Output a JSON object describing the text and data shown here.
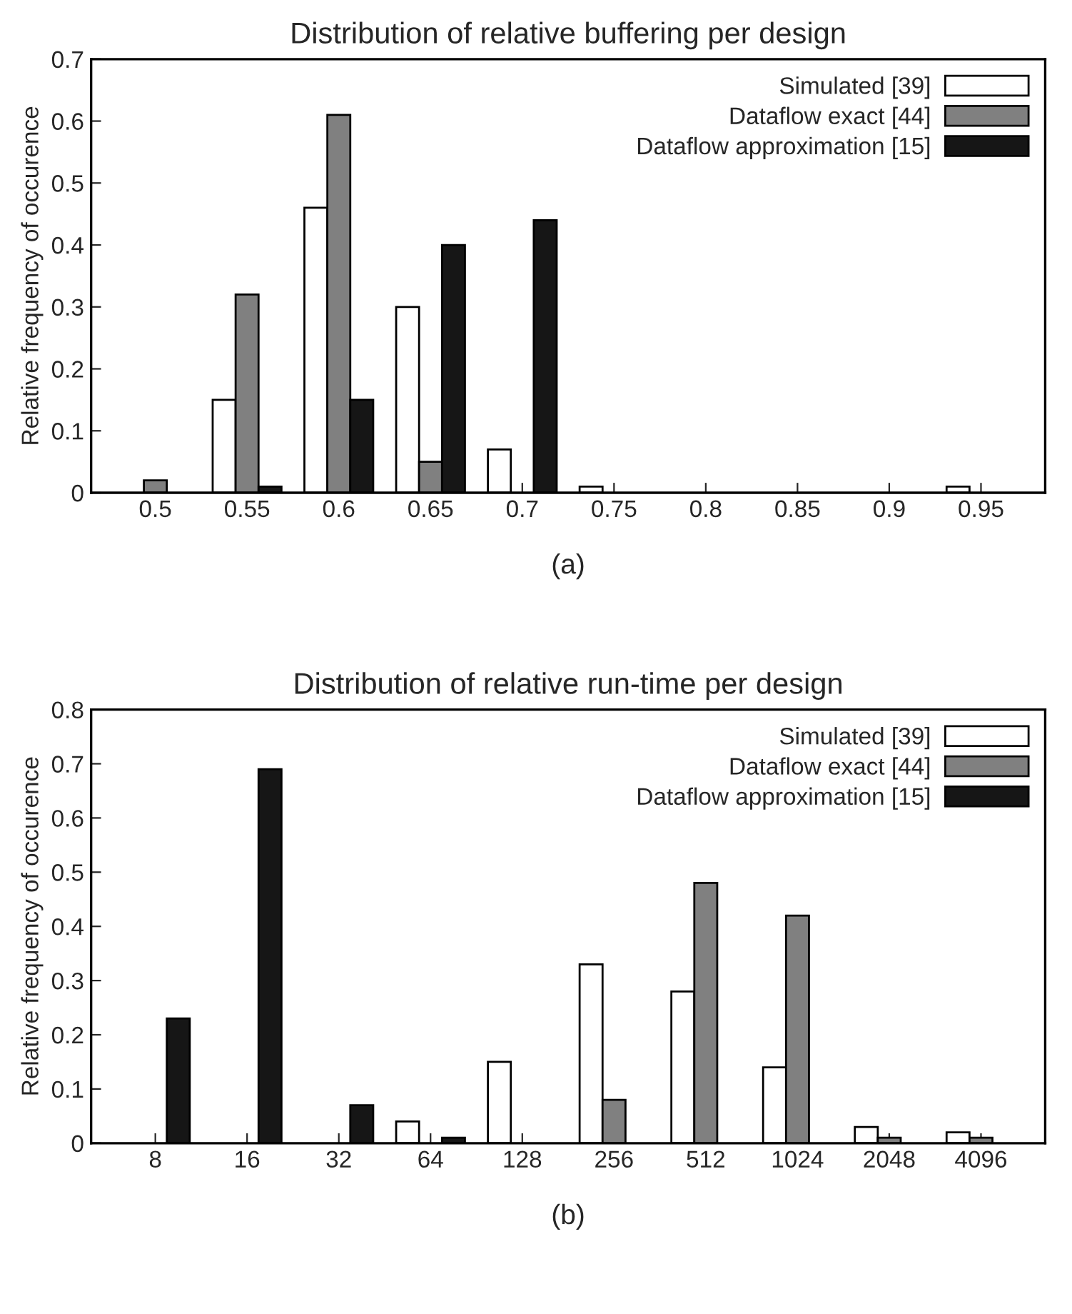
{
  "chart_data": [
    {
      "type": "bar",
      "title": "Distribution of relative buffering per design",
      "ylabel": "Relative frequency of occurence",
      "annotations": [
        "(a)"
      ],
      "categories": [
        "0.5",
        "0.55",
        "0.6",
        "0.65",
        "0.7",
        "0.75",
        "0.8",
        "0.85",
        "0.9",
        "0.95"
      ],
      "series": [
        {
          "name": "Simulated [39]",
          "color": "#ffffff",
          "values": [
            0,
            0.15,
            0.46,
            0.3,
            0.07,
            0.01,
            0,
            0,
            0,
            0.01
          ]
        },
        {
          "name": "Dataflow exact [44]",
          "color": "#808080",
          "values": [
            0.02,
            0.32,
            0.61,
            0.05,
            0,
            0,
            0,
            0,
            0,
            0
          ]
        },
        {
          "name": "Dataflow approximation [15]",
          "color": "#161616",
          "values": [
            0,
            0.01,
            0.15,
            0.4,
            0.44,
            0,
            0,
            0,
            0,
            0
          ]
        }
      ],
      "ylim": [
        0,
        0.7
      ],
      "yticks": [
        0,
        0.1,
        0.2,
        0.3,
        0.4,
        0.5,
        0.6,
        0.7
      ],
      "grid": false,
      "legend": "top right"
    },
    {
      "type": "bar",
      "title": "Distribution of relative run-time per design",
      "ylabel": "Relative frequency of occurence",
      "annotations": [
        "(b)"
      ],
      "categories": [
        "8",
        "16",
        "32",
        "64",
        "128",
        "256",
        "512",
        "1024",
        "2048",
        "4096"
      ],
      "series": [
        {
          "name": "Simulated [39]",
          "color": "#ffffff",
          "values": [
            0,
            0,
            0,
            0.04,
            0.15,
            0.33,
            0.28,
            0.14,
            0.03,
            0.02
          ]
        },
        {
          "name": "Dataflow exact [44]",
          "color": "#808080",
          "values": [
            0,
            0,
            0,
            0,
            0,
            0.08,
            0.48,
            0.42,
            0.01,
            0.01
          ]
        },
        {
          "name": "Dataflow approximation [15]",
          "color": "#161616",
          "values": [
            0.23,
            0.69,
            0.07,
            0.01,
            0,
            0,
            0,
            0,
            0,
            0
          ]
        }
      ],
      "ylim": [
        0,
        0.8
      ],
      "yticks": [
        0,
        0.1,
        0.2,
        0.3,
        0.4,
        0.5,
        0.6,
        0.7,
        0.8
      ],
      "grid": false,
      "legend": "top right"
    }
  ]
}
